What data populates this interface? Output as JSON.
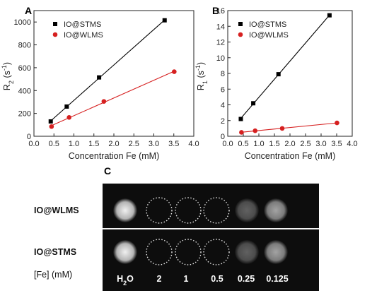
{
  "chart_data": [
    {
      "type": "scatter",
      "panel": "A",
      "xlabel": "Concentration Fe (mM)",
      "ylabel": "R",
      "ylabel_sub": "2",
      "ylabel_unit_open": " (s",
      "ylabel_unit_sup": "-1",
      "ylabel_unit_close": ")",
      "xlim": [
        0.0,
        4.0
      ],
      "ylim": [
        0,
        1100
      ],
      "xticks": [
        "0.0",
        "0.5",
        "1.0",
        "1.5",
        "2.0",
        "2.5",
        "3.0",
        "3.5",
        "4.0"
      ],
      "yticks": [
        "0",
        "200",
        "400",
        "600",
        "800",
        "1000"
      ],
      "legend_position": "top-left",
      "grid": false,
      "series": [
        {
          "name": "IO@STMS",
          "color": "#000000",
          "marker": "square",
          "x": [
            0.42,
            0.82,
            1.63,
            3.27
          ],
          "y": [
            130,
            260,
            515,
            1015
          ]
        },
        {
          "name": "IO@WLMS",
          "color": "#d62020",
          "marker": "circle",
          "x": [
            0.44,
            0.88,
            1.75,
            3.51
          ],
          "y": [
            85,
            165,
            305,
            565
          ]
        }
      ]
    },
    {
      "type": "scatter",
      "panel": "B",
      "xlabel": "Concentration Fe (mM)",
      "ylabel": "R",
      "ylabel_sub": "1",
      "ylabel_unit_open": " (s",
      "ylabel_unit_sup": "-1",
      "ylabel_unit_close": ")",
      "xlim": [
        0.0,
        4.0
      ],
      "ylim": [
        0,
        16
      ],
      "xticks": [
        "0.0",
        "0.5",
        "1.0",
        "1.5",
        "2.0",
        "2.5",
        "3.0",
        "3.5",
        "4.0"
      ],
      "yticks": [
        "0",
        "2",
        "4",
        "6",
        "8",
        "10",
        "12",
        "14",
        "16"
      ],
      "legend_position": "top-left",
      "grid": false,
      "series": [
        {
          "name": "IO@STMS",
          "color": "#000000",
          "marker": "square",
          "x": [
            0.42,
            0.82,
            1.63,
            3.27
          ],
          "y": [
            2.2,
            4.2,
            7.9,
            15.4
          ]
        },
        {
          "name": "IO@WLMS",
          "color": "#d62020",
          "marker": "circle",
          "x": [
            0.44,
            0.88,
            1.75,
            3.51
          ],
          "y": [
            0.5,
            0.7,
            1.0,
            1.7
          ]
        }
      ]
    }
  ],
  "panel_c": {
    "letter": "C",
    "rows": [
      "IO@WLMS",
      "IO@STMS"
    ],
    "fe_label": "[Fe] (mM)",
    "conc_h": "H",
    "conc_h_sub": "2",
    "conc_o": "O",
    "concentrations": [
      "2",
      "1",
      "0.5",
      "0.25",
      "0.125"
    ],
    "sample_signal_levels": [
      1.0,
      0.0,
      0.0,
      0.0,
      0.35,
      0.65
    ],
    "dashed_outline_samples": [
      1,
      2,
      3
    ]
  }
}
